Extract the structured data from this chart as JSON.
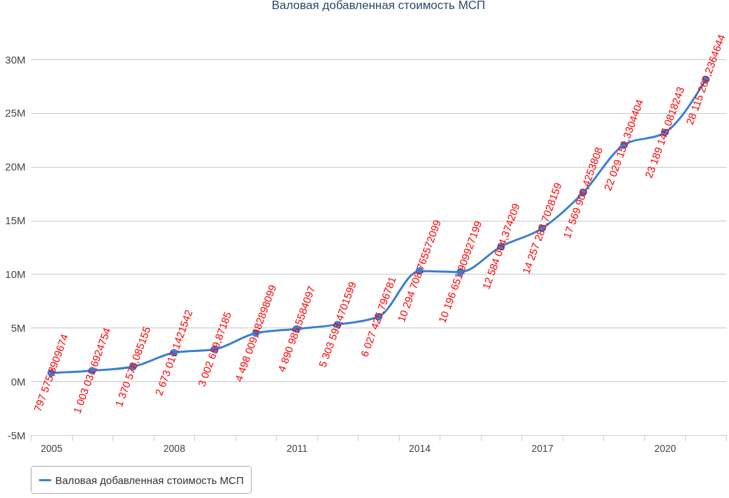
{
  "chart_data": {
    "type": "line",
    "title": "Валовая добавленная стоимость МСП",
    "categories": [
      "2005",
      null,
      null,
      "2008",
      null,
      null,
      "2011",
      null,
      null,
      "2014",
      null,
      null,
      "2017",
      null,
      null,
      "2020",
      null
    ],
    "series": [
      {
        "name": "Валовая добавленная стоимость МСП",
        "color": "#3a7fd5",
        "values": [
          797575.8909674,
          1003031.6924754,
          1370578.085155,
          2673017.1421542,
          3002659.87185,
          4498009.482898099,
          4890985.5584097,
          5303593.4701599,
          6027425.796781,
          10294708.765572099,
          10196651.909927199,
          12584004.374209,
          14257283.7028159,
          17569900.4253808,
          22029151.3304404,
          23189145.0818243,
          28115260.2364644
        ],
        "value_labels": [
          "797 575,8909674",
          "1 003 031,6924754",
          "1 370 578,085155",
          "2 673 017,1421542",
          "3 002 659,87185",
          "4 498 009,482898099",
          "4 890 985,5584097",
          "5 303 593,4701599",
          "6 027 425,796781",
          "10 294 708,765572099",
          "10 196 651,909927199",
          "12 584 004,374209",
          "14 257 283,7028159",
          "17 569 900,4253808",
          "22 029 151,3304404",
          "23 189 145,0818243",
          "28 115 260,2364644"
        ]
      }
    ],
    "ylim": [
      -5000000,
      30000000
    ],
    "yticks": [
      {
        "value": -5000000,
        "label": "-5M"
      },
      {
        "value": 0,
        "label": "0M"
      },
      {
        "value": 5000000,
        "label": "5M"
      },
      {
        "value": 10000000,
        "label": "10M"
      },
      {
        "value": 15000000,
        "label": "15M"
      },
      {
        "value": 20000000,
        "label": "20M"
      },
      {
        "value": 25000000,
        "label": "25M"
      },
      {
        "value": 30000000,
        "label": "30M"
      }
    ],
    "grid": "y",
    "legend": "bottom",
    "marker": "circle",
    "line_style": "solid"
  }
}
